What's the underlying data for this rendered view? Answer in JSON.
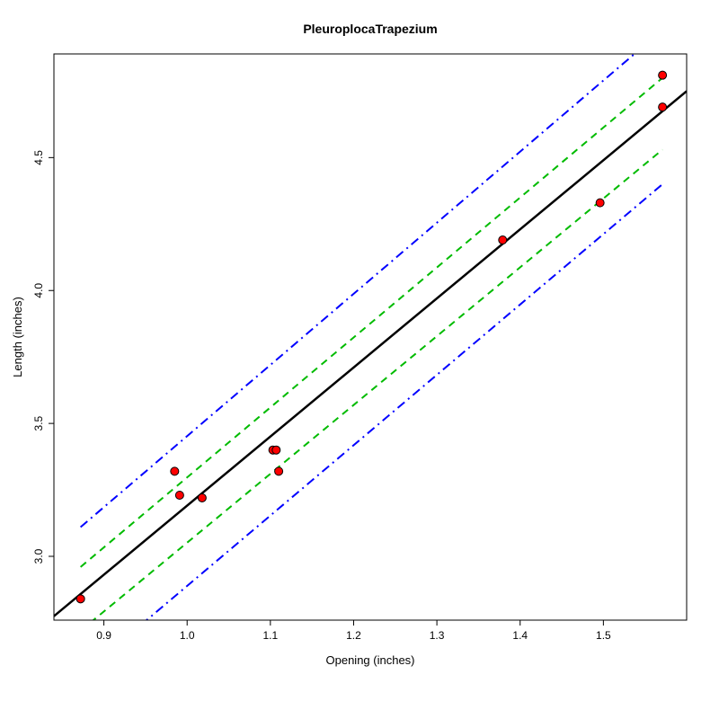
{
  "chart_data": {
    "type": "scatter",
    "title": "PleuroplocaTrapezium",
    "xlabel": "Opening (inches)",
    "ylabel": "Length (inches)",
    "xlim": [
      0.84,
      1.6
    ],
    "ylim": [
      2.76,
      4.89
    ],
    "xticks": [
      0.9,
      1.0,
      1.1,
      1.2,
      1.3,
      1.4,
      1.5
    ],
    "xtick_labels": [
      "0.9",
      "1.0",
      "1.1",
      "1.2",
      "1.3",
      "1.4",
      "1.5"
    ],
    "yticks": [
      3.0,
      3.5,
      4.0,
      4.5
    ],
    "ytick_labels": [
      "3.0",
      "3.5",
      "4.0",
      "4.5"
    ],
    "grid": false,
    "colors": {
      "points": "#ff0000",
      "fit": "#000000",
      "confidence": "#00bb00",
      "prediction": "#0000ff"
    },
    "points": [
      {
        "x": 0.872,
        "y": 2.84
      },
      {
        "x": 0.985,
        "y": 3.32
      },
      {
        "x": 0.991,
        "y": 3.23
      },
      {
        "x": 1.018,
        "y": 3.22
      },
      {
        "x": 1.103,
        "y": 3.4
      },
      {
        "x": 1.107,
        "y": 3.4
      },
      {
        "x": 1.11,
        "y": 3.32
      },
      {
        "x": 1.379,
        "y": 4.19
      },
      {
        "x": 1.496,
        "y": 4.33
      },
      {
        "x": 1.571,
        "y": 4.69
      },
      {
        "x": 1.571,
        "y": 4.81
      }
    ],
    "fit_line": [
      {
        "x": 0.84,
        "y": 2.775
      },
      {
        "x": 1.6,
        "y": 4.75
      }
    ],
    "confidence_upper": [
      {
        "x": 0.872,
        "y": 2.96
      },
      {
        "x": 1.571,
        "y": 4.8
      }
    ],
    "confidence_lower": [
      {
        "x": 0.872,
        "y": 2.72
      },
      {
        "x": 1.571,
        "y": 4.53
      }
    ],
    "prediction_upper": [
      {
        "x": 0.872,
        "y": 3.11
      },
      {
        "x": 1.571,
        "y": 4.98
      }
    ],
    "prediction_lower": [
      {
        "x": 0.872,
        "y": 2.55
      },
      {
        "x": 1.571,
        "y": 4.4
      }
    ]
  }
}
